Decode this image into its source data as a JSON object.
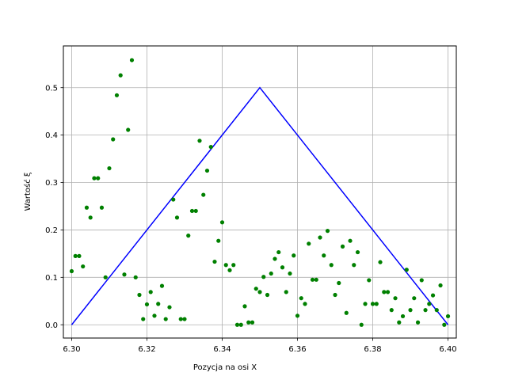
{
  "chart_data": {
    "type": "scatter",
    "title": "",
    "xlabel": "Pozycja na osi X",
    "ylabel": "Wartość ξ",
    "xlim": [
      6.2978,
      6.4022
    ],
    "ylim": [
      -0.028,
      0.588
    ],
    "xticks": [
      6.3,
      6.32,
      6.34,
      6.36,
      6.38,
      6.4
    ],
    "xtick_labels": [
      "6.30",
      "6.32",
      "6.34",
      "6.36",
      "6.38",
      "6.40"
    ],
    "yticks": [
      0.0,
      0.1,
      0.2,
      0.3,
      0.4,
      0.5
    ],
    "ytick_labels": [
      "0.0",
      "0.1",
      "0.2",
      "0.3",
      "0.4",
      "0.5"
    ],
    "grid": true,
    "colors": {
      "line": "#0000ff",
      "points": "#008000",
      "grid": "#b0b0b0"
    },
    "series": [
      {
        "type": "line",
        "x": [
          6.3,
          6.35,
          6.4
        ],
        "y": [
          0.0,
          0.5,
          0.0
        ]
      },
      {
        "type": "scatter",
        "x": [
          6.3,
          6.301,
          6.302,
          6.303,
          6.304,
          6.305,
          6.306,
          6.307,
          6.308,
          6.309,
          6.31,
          6.311,
          6.312,
          6.313,
          6.314,
          6.315,
          6.316,
          6.317,
          6.318,
          6.319,
          6.32,
          6.321,
          6.322,
          6.323,
          6.324,
          6.325,
          6.326,
          6.327,
          6.328,
          6.329,
          6.33,
          6.331,
          6.332,
          6.333,
          6.334,
          6.335,
          6.336,
          6.337,
          6.338,
          6.339,
          6.34,
          6.341,
          6.342,
          6.343,
          6.344,
          6.345,
          6.346,
          6.347,
          6.348,
          6.349,
          6.35,
          6.351,
          6.352,
          6.353,
          6.354,
          6.355,
          6.356,
          6.357,
          6.358,
          6.359,
          6.36,
          6.361,
          6.362,
          6.363,
          6.364,
          6.365,
          6.366,
          6.367,
          6.368,
          6.369,
          6.37,
          6.371,
          6.372,
          6.373,
          6.374,
          6.375,
          6.376,
          6.377,
          6.378,
          6.379,
          6.38,
          6.381,
          6.382,
          6.383,
          6.384,
          6.385,
          6.386,
          6.387,
          6.388,
          6.389,
          6.39,
          6.391,
          6.392,
          6.393,
          6.394,
          6.395,
          6.396,
          6.397,
          6.398,
          6.399,
          6.4
        ],
        "y": [
          0.113,
          0.145,
          0.145,
          0.123,
          0.247,
          0.226,
          0.309,
          0.309,
          0.247,
          0.1,
          0.33,
          0.391,
          0.484,
          0.526,
          0.106,
          0.411,
          0.558,
          0.1,
          0.063,
          0.012,
          0.043,
          0.069,
          0.019,
          0.044,
          0.082,
          0.012,
          0.037,
          0.264,
          0.226,
          0.012,
          0.012,
          0.188,
          0.24,
          0.24,
          0.388,
          0.274,
          0.325,
          0.375,
          0.133,
          0.177,
          0.216,
          0.126,
          0.115,
          0.126,
          0.0,
          0.0,
          0.039,
          0.005,
          0.005,
          0.076,
          0.069,
          0.101,
          0.063,
          0.108,
          0.139,
          0.153,
          0.121,
          0.069,
          0.108,
          0.146,
          0.019,
          0.056,
          0.044,
          0.171,
          0.095,
          0.095,
          0.184,
          0.146,
          0.198,
          0.126,
          0.063,
          0.088,
          0.165,
          0.025,
          0.177,
          0.126,
          0.153,
          0.0,
          0.044,
          0.094,
          0.044,
          0.044,
          0.132,
          0.069,
          0.069,
          0.031,
          0.056,
          0.005,
          0.018,
          0.116,
          0.031,
          0.056,
          0.005,
          0.094,
          0.031,
          0.044,
          0.062,
          0.031,
          0.083,
          0.0,
          0.018
        ]
      }
    ]
  }
}
